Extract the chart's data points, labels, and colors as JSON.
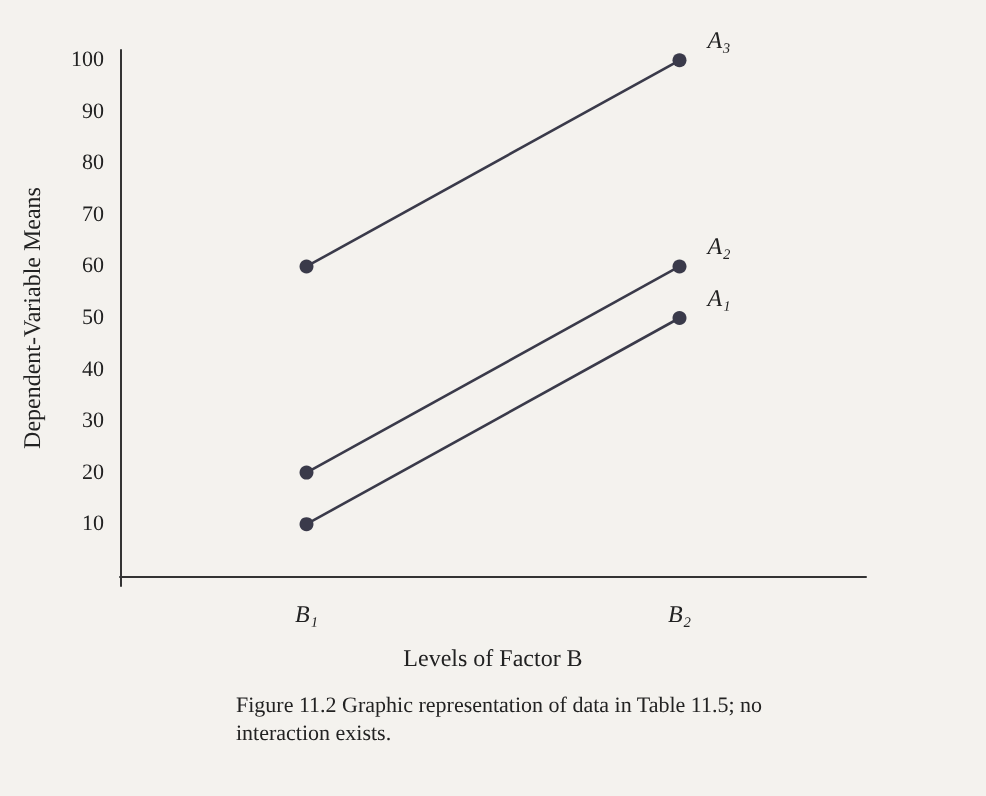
{
  "chart_data": {
    "type": "line",
    "xlabel": "Levels of Factor B",
    "ylabel": "Dependent-Variable Means",
    "categories": [
      "B₁",
      "B₂"
    ],
    "series": [
      {
        "name": "A₁",
        "color": "#3a3a4a",
        "values": [
          10,
          50
        ]
      },
      {
        "name": "A₂",
        "color": "#3a3a4a",
        "values": [
          20,
          60
        ]
      },
      {
        "name": "A₃",
        "color": "#3a3a4a",
        "values": [
          60,
          100
        ]
      }
    ],
    "ylim": [
      -2,
      102
    ],
    "yticks": [
      10,
      20,
      30,
      40,
      50,
      60,
      70,
      80,
      90,
      100
    ],
    "grid": false,
    "legend": false,
    "marker": "circle",
    "line_style": "solid",
    "annotations": [
      "Figure 11.2  Graphic representation of data in Table 11.5; no interaction exists."
    ]
  }
}
